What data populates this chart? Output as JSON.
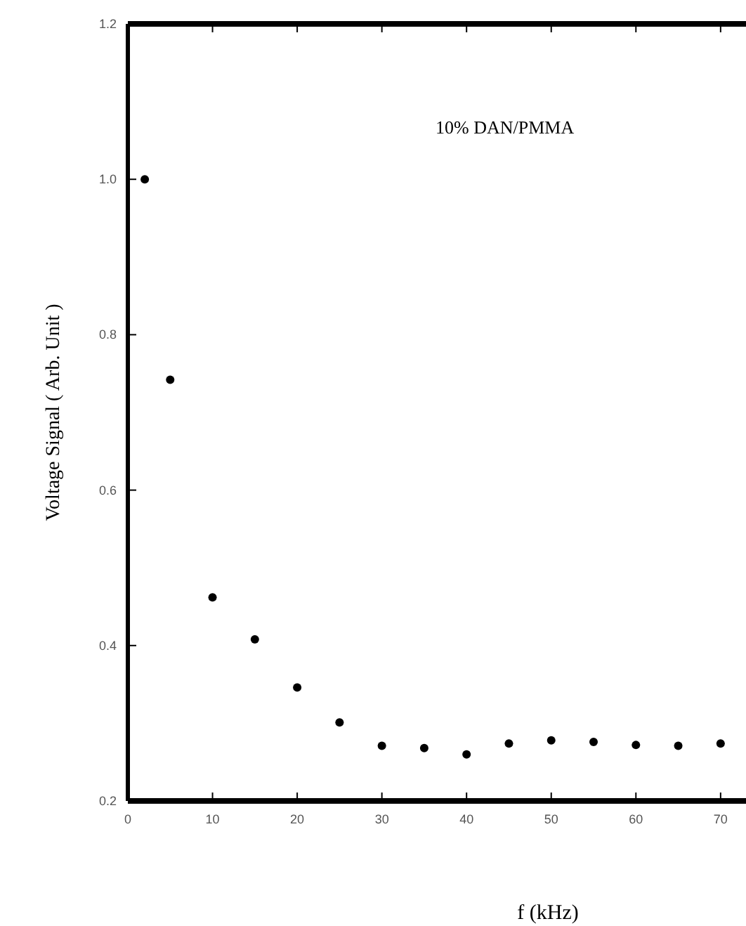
{
  "chart_data": {
    "type": "scatter",
    "xlabel": "f  (kHz)",
    "ylabel": "Voltage Signal  ( Arb. Unit )",
    "annotations": [
      "10% DAN/PMMA"
    ],
    "x": [
      2,
      5,
      10,
      15,
      20,
      25,
      30,
      35,
      40,
      45,
      50,
      55,
      60,
      65,
      70
    ],
    "series": [
      {
        "color": "#000000",
        "values": [
          1.0,
          0.742,
          0.462,
          0.408,
          0.346,
          0.301,
          0.271,
          0.268,
          0.26,
          0.274,
          0.278,
          0.276,
          0.272,
          0.271,
          0.274
        ]
      }
    ],
    "xlim": [
      0,
      73
    ],
    "xticks": [
      0,
      10,
      20,
      30,
      40,
      50,
      60,
      70
    ],
    "ylim": [
      0.2,
      1.2
    ],
    "yticks": [
      {
        "value": 0.2,
        "label": "0.2"
      },
      {
        "value": 0.4,
        "label": "0.4"
      },
      {
        "value": 0.6,
        "label": "0.6"
      },
      {
        "value": 0.8,
        "label": "0.8"
      },
      {
        "value": 1.0,
        "label": "1.0"
      },
      {
        "value": 1.2,
        "label": "1.2"
      }
    ],
    "marker": "circle"
  }
}
